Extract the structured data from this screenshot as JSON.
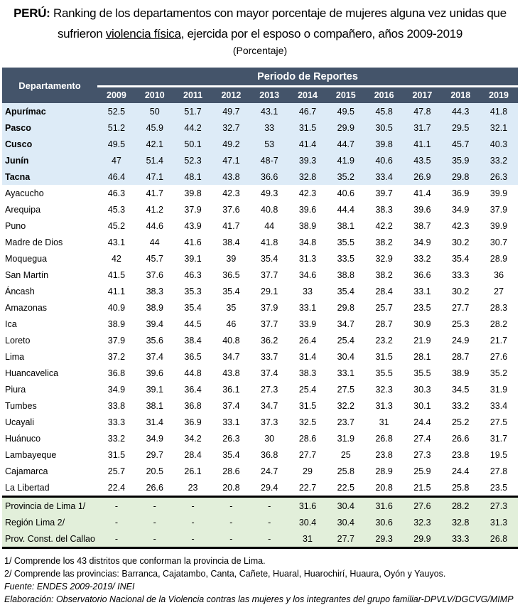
{
  "title": {
    "bold_prefix": "PERÚ:",
    "line1": "Ranking de los departamentos con mayor porcentaje de mujeres alguna vez unidas que",
    "line2_pre": "sufrieron",
    "line2_underlined": "violencia física",
    "line2_post": ", ejercida por el esposo o compañero, años 2009-2019",
    "unit": "(Porcentaje)"
  },
  "table": {
    "dep_header": "Departamento",
    "period_header": "Periodo de Reportes",
    "years": [
      "2009",
      "2010",
      "2011",
      "2012",
      "2013",
      "2014",
      "2015",
      "2016",
      "2017",
      "2018",
      "2019"
    ],
    "top_rows": [
      {
        "name": "Apurímac",
        "values": [
          "52.5",
          "50",
          "51.7",
          "49.7",
          "43.1",
          "46.7",
          "49.5",
          "45.8",
          "47.8",
          "44.3",
          "41.8"
        ]
      },
      {
        "name": "Pasco",
        "values": [
          "51.2",
          "45.9",
          "44.2",
          "32.7",
          "33",
          "31.5",
          "29.9",
          "30.5",
          "31.7",
          "29.5",
          "32.1"
        ]
      },
      {
        "name": "Cusco",
        "values": [
          "49.5",
          "42.1",
          "50.1",
          "49.2",
          "53",
          "41.4",
          "44.7",
          "39.8",
          "41.1",
          "45.7",
          "40.3"
        ]
      },
      {
        "name": "Junín",
        "values": [
          "47",
          "51.4",
          "52.3",
          "47.1",
          "48-7",
          "39.3",
          "41.9",
          "40.6",
          "43.5",
          "35.9",
          "33.2"
        ]
      },
      {
        "name": "Tacna",
        "values": [
          "46.4",
          "47.1",
          "48.1",
          "43.8",
          "36.6",
          "32.8",
          "35.2",
          "33.4",
          "26.9",
          "29.8",
          "26.3"
        ]
      }
    ],
    "rows": [
      {
        "name": "Ayacucho",
        "values": [
          "46.3",
          "41.7",
          "39.8",
          "42.3",
          "49.3",
          "42.3",
          "40.6",
          "39.7",
          "41.4",
          "36.9",
          "39.9"
        ]
      },
      {
        "name": "Arequipa",
        "values": [
          "45.3",
          "41.2",
          "37.9",
          "37.6",
          "40.8",
          "39.6",
          "44.4",
          "38.3",
          "39.6",
          "34.9",
          "37.9"
        ]
      },
      {
        "name": "Puno",
        "values": [
          "45.2",
          "44.6",
          "43.9",
          "41.7",
          "44",
          "38.9",
          "38.1",
          "42.2",
          "38.7",
          "42.3",
          "39.9"
        ]
      },
      {
        "name": "Madre de Dios",
        "values": [
          "43.1",
          "44",
          "41.6",
          "38.4",
          "41.8",
          "34.8",
          "35.5",
          "38.2",
          "34.9",
          "30.2",
          "30.7"
        ]
      },
      {
        "name": "Moquegua",
        "values": [
          "42",
          "45.7",
          "39.1",
          "39",
          "35.4",
          "31.3",
          "33.5",
          "32.9",
          "33.2",
          "35.4",
          "28.9"
        ]
      },
      {
        "name": "San Martín",
        "values": [
          "41.5",
          "37.6",
          "46.3",
          "36.5",
          "37.7",
          "34.6",
          "38.8",
          "38.2",
          "36.6",
          "33.3",
          "36"
        ]
      },
      {
        "name": "Áncash",
        "values": [
          "41.1",
          "38.3",
          "35.3",
          "35.4",
          "29.1",
          "33",
          "35.4",
          "28.4",
          "33.1",
          "30.2",
          "27"
        ]
      },
      {
        "name": "Amazonas",
        "values": [
          "40.9",
          "38.9",
          "35.4",
          "35",
          "37.9",
          "33.1",
          "29.8",
          "25.7",
          "23.5",
          "27.7",
          "28.3"
        ]
      },
      {
        "name": "Ica",
        "values": [
          "38.9",
          "39.4",
          "44.5",
          "46",
          "37.7",
          "33.9",
          "34.7",
          "28.7",
          "30.9",
          "25.3",
          "28.2"
        ]
      },
      {
        "name": "Loreto",
        "values": [
          "37.9",
          "35.6",
          "38.4",
          "40.8",
          "36.2",
          "26.4",
          "25.4",
          "23.2",
          "21.9",
          "24.9",
          "21.7"
        ]
      },
      {
        "name": "Lima",
        "values": [
          "37.2",
          "37.4",
          "36.5",
          "34.7",
          "33.7",
          "31.4",
          "30.4",
          "31.5",
          "28.1",
          "28.7",
          "27.6"
        ]
      },
      {
        "name": "Huancavelica",
        "values": [
          "36.8",
          "39.6",
          "44.8",
          "43.8",
          "37.4",
          "38.3",
          "33.1",
          "35.5",
          "35.5",
          "38.9",
          "35.2"
        ]
      },
      {
        "name": "Piura",
        "values": [
          "34.9",
          "39.1",
          "36.4",
          "36.1",
          "27.3",
          "25.4",
          "27.5",
          "32.3",
          "30.3",
          "34.5",
          "31.9"
        ]
      },
      {
        "name": "Tumbes",
        "values": [
          "33.8",
          "38.1",
          "36.8",
          "37.4",
          "34.7",
          "31.5",
          "32.2",
          "31.3",
          "30.1",
          "33.2",
          "33.4"
        ]
      },
      {
        "name": "Ucayali",
        "values": [
          "33.3",
          "31.4",
          "36.9",
          "33.1",
          "37.3",
          "32.5",
          "23.7",
          "31",
          "24.4",
          "25.2",
          "27.5"
        ]
      },
      {
        "name": "Huánuco",
        "values": [
          "33.2",
          "34.9",
          "34.2",
          "26.3",
          "30",
          "28.6",
          "31.9",
          "26.8",
          "27.4",
          "26.6",
          "31.7"
        ]
      },
      {
        "name": "Lambayeque",
        "values": [
          "31.5",
          "29.7",
          "28.4",
          "35.4",
          "36.8",
          "27.7",
          "25",
          "23.8",
          "27.3",
          "23.8",
          "19.5"
        ]
      },
      {
        "name": "Cajamarca",
        "values": [
          "25.7",
          "20.5",
          "26.1",
          "28.6",
          "24.7",
          "29",
          "25.8",
          "28.9",
          "25.9",
          "24.4",
          "27.8"
        ]
      },
      {
        "name": "La Libertad",
        "values": [
          "22.4",
          "26.6",
          "23",
          "20.8",
          "29.4",
          "22.7",
          "22.5",
          "20.8",
          "21.5",
          "25.8",
          "23.5"
        ]
      }
    ],
    "lima_rows": [
      {
        "name": "Provincia de Lima 1/",
        "values": [
          "-",
          "-",
          "-",
          "-",
          "-",
          "31.6",
          "30.4",
          "31.6",
          "27.6",
          "28.2",
          "27.3"
        ]
      },
      {
        "name": "Región Lima 2/",
        "values": [
          "-",
          "-",
          "-",
          "-",
          "-",
          "30.4",
          "30.4",
          "30.6",
          "32.3",
          "32.8",
          "31.3"
        ]
      },
      {
        "name": "Prov. Const. del Callao",
        "values": [
          "-",
          "-",
          "-",
          "-",
          "-",
          "31",
          "27.7",
          "29.3",
          "29.9",
          "33.3",
          "26.8"
        ]
      }
    ]
  },
  "notes": {
    "note1": "1/ Comprende los 43 distritos que conforman la provincia de Lima.",
    "note2": "2/ Comprende las provincias: Barranca, Cajatambo, Canta, Cañete, Huaral, Huarochirí, Huaura, Oyón y Yauyos.",
    "source": "Fuente: ENDES 2009-2019/ INEI",
    "elaboration": "Elaboración: Observatorio Nacional de la Violencia contras las mujeres y los integrantes del grupo familiar-DPVLV/DGCVG/MIMP"
  },
  "colors": {
    "header_bg": "#44546a",
    "top_rows_bg": "#ddebf7",
    "lima_rows_bg": "#e2efda"
  }
}
